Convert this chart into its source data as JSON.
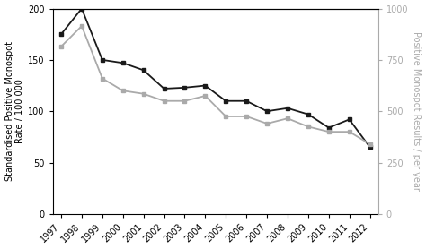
{
  "years": [
    1997,
    1998,
    1999,
    2000,
    2001,
    2002,
    2003,
    2004,
    2005,
    2006,
    2007,
    2008,
    2009,
    2010,
    2011,
    2012
  ],
  "black_line": [
    175,
    200,
    150,
    147,
    140,
    122,
    123,
    125,
    110,
    110,
    100,
    103,
    97,
    84,
    92,
    65
  ],
  "gray_line": [
    163,
    183,
    132,
    120,
    117,
    110,
    110,
    115,
    95,
    95,
    88,
    93,
    85,
    80,
    80,
    68
  ],
  "left_ylabel": "Standardised Positive Monospot\nRate / 100 000",
  "right_ylabel": "Positive Monospot Results / per year",
  "left_ylim": [
    0,
    200
  ],
  "right_ylim": [
    0,
    1000
  ],
  "left_yticks": [
    0,
    50,
    100,
    150,
    200
  ],
  "right_yticks": [
    0,
    250,
    500,
    750,
    1000
  ],
  "black_color": "#1a1a1a",
  "gray_color": "#aaaaaa",
  "background_color": "#ffffff",
  "marker": "s",
  "markersize": 3.5,
  "linewidth": 1.3,
  "label_fontsize": 7.0,
  "tick_fontsize": 7.0
}
